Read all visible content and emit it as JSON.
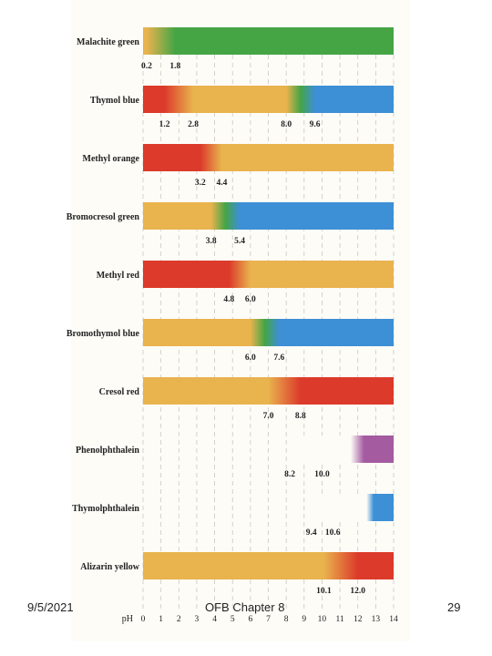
{
  "footer": {
    "date": "9/5/2021",
    "title": "OFB Chapter 8",
    "page": "29"
  },
  "colors": {
    "green": "#45a545",
    "red": "#dc3a2a",
    "yellow": "#e9b34e",
    "blue": "#3d8fd6",
    "purple": "#a45ba0",
    "white": "#fdfcf7"
  },
  "chart_data": {
    "type": "table",
    "title": "",
    "xlabel": "pH",
    "xlim": [
      0,
      14
    ],
    "ticks": [
      "0",
      "1",
      "2",
      "3",
      "4",
      "5",
      "6",
      "7",
      "8",
      "9",
      "10",
      "11",
      "12",
      "13",
      "14"
    ],
    "indicators": [
      {
        "name": "Malachite green",
        "low": 0.2,
        "high": 1.8,
        "low_label": "0.2",
        "high_label": "1.8",
        "from_color": "yellow",
        "to_color": "green"
      },
      {
        "name": "Thymol blue",
        "low": 1.2,
        "high": 2.8,
        "low_label": "1.2",
        "high_label": "2.8",
        "low2": 8.0,
        "high2": 9.6,
        "low2_label": "8.0",
        "high2_label": "9.6",
        "from_color": "red",
        "mid_color": "yellow",
        "to_color": "blue"
      },
      {
        "name": "Methyl orange",
        "low": 3.2,
        "high": 4.4,
        "low_label": "3.2",
        "high_label": "4.4",
        "from_color": "red",
        "to_color": "yellow"
      },
      {
        "name": "Bromocresol green",
        "low": 3.8,
        "high": 5.4,
        "low_label": "3.8",
        "high_label": "5.4",
        "from_color": "yellow",
        "to_color": "blue"
      },
      {
        "name": "Methyl red",
        "low": 4.8,
        "high": 6.0,
        "low_label": "4.8",
        "high_label": "6.0",
        "from_color": "red",
        "to_color": "yellow"
      },
      {
        "name": "Bromothymol blue",
        "low": 6.0,
        "high": 7.6,
        "low_label": "6.0",
        "high_label": "7.6",
        "from_color": "yellow",
        "to_color": "blue"
      },
      {
        "name": "Cresol red",
        "low": 7.0,
        "high": 8.8,
        "low_label": "7.0",
        "high_label": "8.8",
        "from_color": "yellow",
        "to_color": "red"
      },
      {
        "name": "Phenolphthalein",
        "low": 8.2,
        "high": 10.0,
        "low_label": "8.2",
        "high_label": "10.0",
        "from_color": "white",
        "to_color": "purple"
      },
      {
        "name": "Thymolphthalein",
        "low": 9.4,
        "high": 10.6,
        "low_label": "9.4",
        "high_label": "10.6",
        "from_color": "white",
        "to_color": "blue"
      },
      {
        "name": "Alizarin yellow",
        "low": 10.1,
        "high": 12.0,
        "low_label": "10.1",
        "high_label": "12.0",
        "from_color": "yellow",
        "to_color": "red"
      }
    ]
  }
}
